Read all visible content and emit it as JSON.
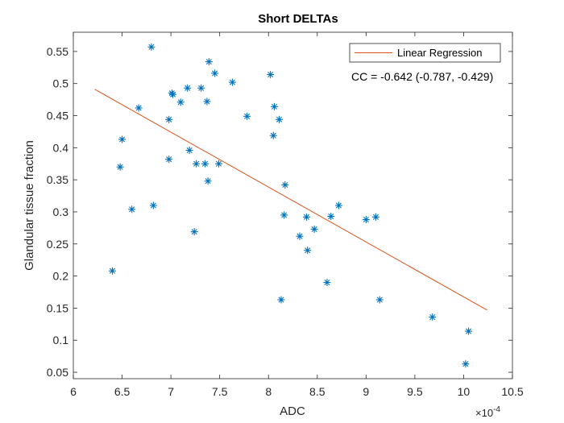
{
  "chart_data": {
    "type": "scatter",
    "title": "Short DELTAs",
    "xlabel": "ADC",
    "ylabel": "Glandular tissue fraction",
    "x_multiplier": "×10",
    "x_exponent": "-4",
    "xlim": [
      6,
      10.5
    ],
    "ylim": [
      0.04,
      0.58
    ],
    "xticks": [
      6,
      6.5,
      7,
      7.5,
      8,
      8.5,
      9,
      9.5,
      10,
      10.5
    ],
    "xtick_labels": [
      "6",
      "6.5",
      "7",
      "7.5",
      "8",
      "8.5",
      "9",
      "9.5",
      "10",
      "10.5"
    ],
    "yticks": [
      0.05,
      0.1,
      0.15,
      0.2,
      0.25,
      0.3,
      0.35,
      0.4,
      0.45,
      0.5,
      0.55
    ],
    "ytick_labels": [
      "0.05",
      "0.1",
      "0.15",
      "0.2",
      "0.25",
      "0.3",
      "0.35",
      "0.4",
      "0.45",
      "0.5",
      "0.55"
    ],
    "grid": false,
    "legend_placement": "top-right",
    "marker_color": "#0072BD",
    "line_color": "#D95319",
    "series": [
      {
        "marker": "asterisk",
        "points": [
          [
            6.8,
            0.557
          ],
          [
            7.39,
            0.534
          ],
          [
            7.45,
            0.516
          ],
          [
            8.02,
            0.514
          ],
          [
            7.63,
            0.502
          ],
          [
            7.17,
            0.493
          ],
          [
            7.31,
            0.493
          ],
          [
            7.01,
            0.485
          ],
          [
            7.02,
            0.483
          ],
          [
            7.1,
            0.471
          ],
          [
            7.37,
            0.472
          ],
          [
            6.67,
            0.462
          ],
          [
            8.06,
            0.464
          ],
          [
            7.78,
            0.449
          ],
          [
            6.98,
            0.444
          ],
          [
            8.11,
            0.444
          ],
          [
            8.05,
            0.419
          ],
          [
            6.5,
            0.413
          ],
          [
            7.19,
            0.396
          ],
          [
            6.98,
            0.382
          ],
          [
            7.26,
            0.375
          ],
          [
            7.35,
            0.375
          ],
          [
            7.49,
            0.375
          ],
          [
            6.48,
            0.37
          ],
          [
            7.38,
            0.348
          ],
          [
            8.17,
            0.342
          ],
          [
            6.82,
            0.31
          ],
          [
            8.72,
            0.31
          ],
          [
            6.6,
            0.304
          ],
          [
            8.16,
            0.295
          ],
          [
            8.39,
            0.292
          ],
          [
            8.64,
            0.293
          ],
          [
            9.0,
            0.288
          ],
          [
            9.1,
            0.292
          ],
          [
            8.47,
            0.273
          ],
          [
            7.24,
            0.269
          ],
          [
            8.32,
            0.262
          ],
          [
            8.4,
            0.24
          ],
          [
            6.4,
            0.208
          ],
          [
            8.6,
            0.19
          ],
          [
            8.13,
            0.163
          ],
          [
            9.14,
            0.163
          ],
          [
            9.68,
            0.136
          ],
          [
            10.05,
            0.114
          ],
          [
            10.02,
            0.063
          ]
        ]
      },
      {
        "name": "Linear Regression",
        "line": [
          [
            6.22,
            0.491
          ],
          [
            10.24,
            0.147
          ]
        ]
      }
    ],
    "annotation": "CC = -0.642 (-0.787, -0.429)"
  }
}
